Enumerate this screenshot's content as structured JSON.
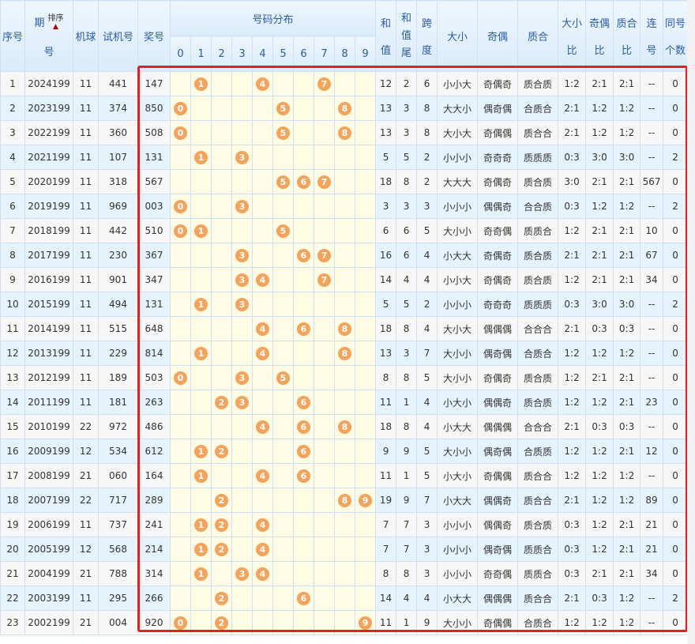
{
  "headers": {
    "idx": "序号",
    "period_a": "期",
    "period_b": "号",
    "sort": "排序",
    "ball": "机球",
    "test": "试机号",
    "win": "奖号",
    "dist": "号码分布",
    "digits": [
      "0",
      "1",
      "2",
      "3",
      "4",
      "5",
      "6",
      "7",
      "8",
      "9"
    ],
    "sum_a": "和",
    "sum_b": "值",
    "tail_a": "和",
    "tail_b": "值",
    "tail_c": "尾",
    "span_a": "跨",
    "span_b": "度",
    "dx": "大小",
    "jo": "奇偶",
    "zh": "质合",
    "dxb_a": "大小",
    "dxb_b": "比",
    "job_a": "奇偶",
    "job_b": "比",
    "zhb_a": "质合",
    "zhb_b": "比",
    "lian_a": "连",
    "lian_b": "号",
    "tong_a": "同号",
    "tong_b": "个数"
  },
  "colors": {
    "ball": "#f5a25a",
    "highlight": "#f21a1a"
  },
  "rows": [
    [
      "1",
      "2024199",
      "11",
      "441",
      "147",
      "12",
      "2",
      "6",
      "小小大",
      "奇偶奇",
      "质合质",
      "1:2",
      "2:1",
      "2:1",
      "--",
      "0"
    ],
    [
      "2",
      "2023199",
      "11",
      "374",
      "850",
      "13",
      "3",
      "8",
      "大大小",
      "偶奇偶",
      "合质合",
      "2:1",
      "1:2",
      "1:2",
      "--",
      "0"
    ],
    [
      "3",
      "2022199",
      "11",
      "360",
      "508",
      "13",
      "3",
      "8",
      "大小大",
      "奇偶偶",
      "质合合",
      "2:1",
      "1:2",
      "1:2",
      "--",
      "0"
    ],
    [
      "4",
      "2021199",
      "11",
      "107",
      "131",
      "5",
      "5",
      "2",
      "小小小",
      "奇奇奇",
      "质质质",
      "0:3",
      "3:0",
      "3:0",
      "--",
      "2"
    ],
    [
      "5",
      "2020199",
      "11",
      "318",
      "567",
      "18",
      "8",
      "2",
      "大大大",
      "奇偶奇",
      "质合质",
      "3:0",
      "2:1",
      "2:1",
      "567",
      "0"
    ],
    [
      "6",
      "2019199",
      "11",
      "969",
      "003",
      "3",
      "3",
      "3",
      "小小小",
      "偶偶奇",
      "合合质",
      "0:3",
      "1:2",
      "1:2",
      "--",
      "2"
    ],
    [
      "7",
      "2018199",
      "11",
      "442",
      "510",
      "6",
      "6",
      "5",
      "大小小",
      "奇奇偶",
      "质质合",
      "1:2",
      "2:1",
      "2:1",
      "10",
      "0"
    ],
    [
      "8",
      "2017199",
      "11",
      "230",
      "367",
      "16",
      "6",
      "4",
      "小大大",
      "奇偶奇",
      "质合质",
      "2:1",
      "2:1",
      "2:1",
      "67",
      "0"
    ],
    [
      "9",
      "2016199",
      "11",
      "901",
      "347",
      "14",
      "4",
      "4",
      "小小大",
      "奇偶奇",
      "质合质",
      "1:2",
      "2:1",
      "2:1",
      "34",
      "0"
    ],
    [
      "10",
      "2015199",
      "11",
      "494",
      "131",
      "5",
      "5",
      "2",
      "小小小",
      "奇奇奇",
      "质质质",
      "0:3",
      "3:0",
      "3:0",
      "--",
      "2"
    ],
    [
      "11",
      "2014199",
      "11",
      "515",
      "648",
      "18",
      "8",
      "4",
      "大小大",
      "偶偶偶",
      "合合合",
      "2:1",
      "0:3",
      "0:3",
      "--",
      "0"
    ],
    [
      "12",
      "2013199",
      "11",
      "229",
      "814",
      "13",
      "3",
      "7",
      "大小小",
      "偶奇偶",
      "合质合",
      "1:2",
      "1:2",
      "1:2",
      "--",
      "0"
    ],
    [
      "13",
      "2012199",
      "11",
      "189",
      "503",
      "8",
      "8",
      "5",
      "大小小",
      "奇偶奇",
      "质合质",
      "1:2",
      "2:1",
      "2:1",
      "--",
      "0"
    ],
    [
      "14",
      "2011199",
      "11",
      "181",
      "263",
      "11",
      "1",
      "4",
      "小大小",
      "偶偶奇",
      "质合质",
      "1:2",
      "1:2",
      "2:1",
      "23",
      "0"
    ],
    [
      "15",
      "2010199",
      "22",
      "972",
      "486",
      "18",
      "8",
      "4",
      "小大大",
      "偶偶偶",
      "合合合",
      "2:1",
      "0:3",
      "0:3",
      "--",
      "0"
    ],
    [
      "16",
      "2009199",
      "12",
      "534",
      "612",
      "9",
      "9",
      "5",
      "大小小",
      "偶奇偶",
      "合质质",
      "1:2",
      "1:2",
      "2:1",
      "12",
      "0"
    ],
    [
      "17",
      "2008199",
      "21",
      "060",
      "164",
      "11",
      "1",
      "5",
      "小大小",
      "奇偶偶",
      "质合合",
      "1:2",
      "1:2",
      "1:2",
      "--",
      "0"
    ],
    [
      "18",
      "2007199",
      "22",
      "717",
      "289",
      "19",
      "9",
      "7",
      "小大大",
      "偶偶奇",
      "质合合",
      "2:1",
      "1:2",
      "1:2",
      "89",
      "0"
    ],
    [
      "19",
      "2006199",
      "11",
      "737",
      "241",
      "7",
      "7",
      "3",
      "小小小",
      "偶偶奇",
      "质合质",
      "0:3",
      "1:2",
      "2:1",
      "21",
      "0"
    ],
    [
      "20",
      "2005199",
      "12",
      "568",
      "214",
      "7",
      "7",
      "3",
      "小小小",
      "偶奇偶",
      "质质合",
      "0:3",
      "1:2",
      "2:1",
      "21",
      "0"
    ],
    [
      "21",
      "2004199",
      "21",
      "788",
      "314",
      "8",
      "8",
      "3",
      "小小小",
      "奇奇偶",
      "质质合",
      "0:3",
      "2:1",
      "2:1",
      "34",
      "0"
    ],
    [
      "22",
      "2003199",
      "11",
      "295",
      "266",
      "14",
      "4",
      "4",
      "小大大",
      "偶偶偶",
      "质合合",
      "2:1",
      "0:3",
      "1:2",
      "--",
      "2"
    ],
    [
      "23",
      "2002199",
      "21",
      "004",
      "920",
      "11",
      "1",
      "9",
      "大小小",
      "奇偶偶",
      "合质合",
      "1:2",
      "1:2",
      "1:2",
      "--",
      "0"
    ]
  ]
}
